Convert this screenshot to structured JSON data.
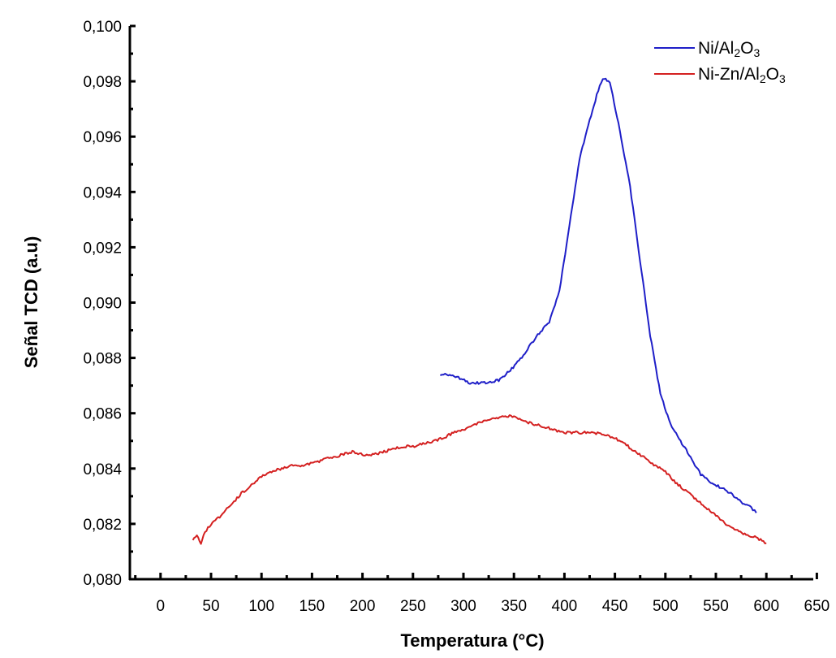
{
  "chart_data": {
    "type": "line",
    "xlabel": "Temperatura (°C)",
    "ylabel": "Señal  TCD (a.u)",
    "xlim": [
      -30,
      650
    ],
    "ylim": [
      0.08,
      0.1
    ],
    "x_ticks": [
      0,
      50,
      100,
      150,
      200,
      250,
      300,
      350,
      400,
      450,
      500,
      550,
      600,
      650
    ],
    "x_tick_labels": [
      "0",
      "50",
      "100",
      "150",
      "200",
      "250",
      "300",
      "350",
      "400",
      "450",
      "500",
      "550",
      "600",
      "650"
    ],
    "y_ticks": [
      0.08,
      0.082,
      0.084,
      0.086,
      0.088,
      0.09,
      0.092,
      0.094,
      0.096,
      0.098,
      0.1
    ],
    "y_tick_labels": [
      "0,080",
      "0,082",
      "0,084",
      "0,086",
      "0,088",
      "0,090",
      "0,092",
      "0,094",
      "0,096",
      "0,098",
      "0,100"
    ],
    "grid": false,
    "legend_position": "top-right",
    "series": [
      {
        "name": "Ni/Al2O3",
        "legend_main": "Ni/Al",
        "legend_parts": [
          {
            "text": "Ni/Al",
            "sub": false
          },
          {
            "text": "2",
            "sub": true
          },
          {
            "text": "O",
            "sub": false
          },
          {
            "text": "3",
            "sub": true
          }
        ],
        "color": "#1f1fc8",
        "x": [
          277,
          285,
          295,
          305,
          315,
          325,
          335,
          345,
          355,
          365,
          375,
          385,
          395,
          405,
          415,
          425,
          432,
          438,
          445,
          455,
          465,
          475,
          485,
          495,
          505,
          515,
          525,
          535,
          545,
          555,
          565,
          575,
          585,
          590
        ],
        "y": [
          0.0874,
          0.0874,
          0.0873,
          0.0871,
          0.0871,
          0.0871,
          0.0872,
          0.0875,
          0.0879,
          0.0884,
          0.0889,
          0.0893,
          0.0904,
          0.0928,
          0.0952,
          0.0966,
          0.0975,
          0.0981,
          0.098,
          0.0962,
          0.0942,
          0.0915,
          0.0888,
          0.0867,
          0.0856,
          0.085,
          0.0844,
          0.0838,
          0.0835,
          0.0833,
          0.0831,
          0.0828,
          0.0826,
          0.0824
        ]
      },
      {
        "name": "Ni-Zn/Al2O3",
        "legend_main": "Ni-Zn/Al",
        "legend_parts": [
          {
            "text": "Ni-Zn/Al",
            "sub": false
          },
          {
            "text": "2",
            "sub": true
          },
          {
            "text": "O",
            "sub": false
          },
          {
            "text": "3",
            "sub": true
          }
        ],
        "color": "#d42020",
        "x": [
          32,
          36,
          40,
          44,
          50,
          60,
          70,
          80,
          90,
          100,
          110,
          120,
          130,
          140,
          150,
          160,
          170,
          180,
          190,
          200,
          210,
          220,
          230,
          240,
          250,
          260,
          270,
          280,
          290,
          300,
          310,
          320,
          330,
          340,
          350,
          360,
          370,
          380,
          390,
          400,
          410,
          420,
          430,
          440,
          450,
          460,
          470,
          480,
          490,
          500,
          510,
          520,
          530,
          540,
          550,
          560,
          570,
          580,
          590,
          600
        ],
        "y": [
          0.0814,
          0.0816,
          0.0813,
          0.0817,
          0.082,
          0.0823,
          0.0827,
          0.0831,
          0.0834,
          0.0837,
          0.0839,
          0.084,
          0.0841,
          0.0841,
          0.0842,
          0.0843,
          0.0844,
          0.0845,
          0.0846,
          0.0845,
          0.0845,
          0.0846,
          0.0847,
          0.0848,
          0.0848,
          0.0849,
          0.085,
          0.0851,
          0.0853,
          0.0854,
          0.0856,
          0.0857,
          0.0858,
          0.0859,
          0.0859,
          0.0857,
          0.0856,
          0.0855,
          0.0854,
          0.0853,
          0.0853,
          0.0853,
          0.0853,
          0.0852,
          0.0851,
          0.0849,
          0.0846,
          0.0844,
          0.0841,
          0.0839,
          0.0835,
          0.0832,
          0.0829,
          0.0826,
          0.0823,
          0.082,
          0.0818,
          0.0816,
          0.0815,
          0.0813
        ]
      }
    ]
  }
}
